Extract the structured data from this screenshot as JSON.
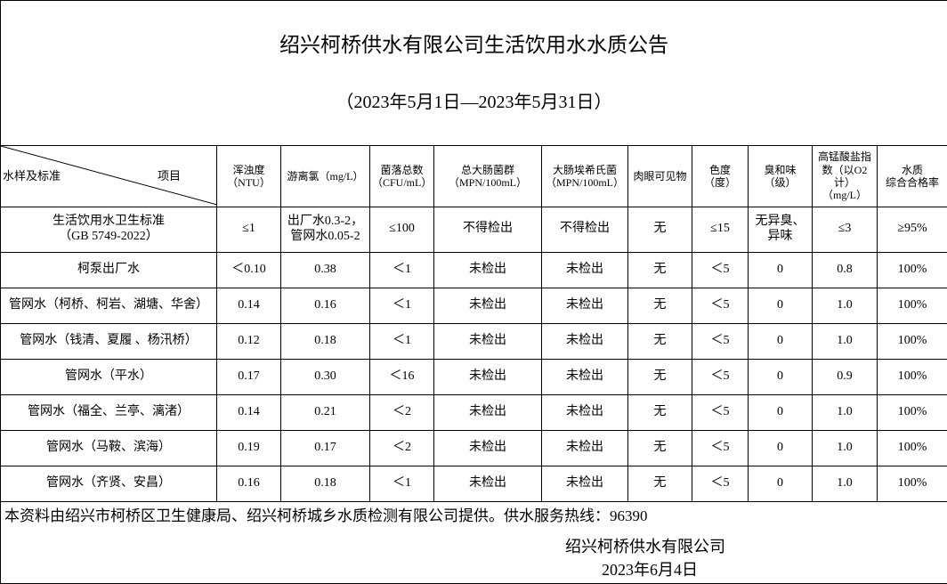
{
  "title": "绍兴柯桥供水有限公司生活饮用水水质公告",
  "subtitle": "（2023年5月1日—2023年5月31日）",
  "table": {
    "corner": {
      "row_label": "水样及标准",
      "col_label": "项目"
    },
    "headers": [
      "浑浊度\n（NTU）",
      "游离氯（mg/L）",
      "菌落总数\n（CFU/mL）",
      "总大肠菌群\n（MPN/100mL）",
      "大肠埃希氏菌\n（MPN/100mL）",
      "肉眼可见物",
      "色度\n（度）",
      "臭和味\n（级）",
      "高锰酸盐指\n数（以O2计）\n（mg/L）",
      "水质\n综合合格率"
    ],
    "rows": [
      [
        "生活饮用水卫生标准\n（GB 5749-2022）",
        "≤1",
        "出厂水0.3-2，\n管网水0.05-2",
        "≤100",
        "不得检出",
        "不得检出",
        "无",
        "≤15",
        "无异臭、\n异味",
        "≤3",
        "≥95%"
      ],
      [
        "柯泵出厂水",
        "＜0.10",
        "0.38",
        "＜1",
        "未检出",
        "未检出",
        "无",
        "＜5",
        "0",
        "0.8",
        "100%"
      ],
      [
        "管网水（柯桥、柯岩、湖塘、华舍）",
        "0.14",
        "0.16",
        "＜1",
        "未检出",
        "未检出",
        "无",
        "＜5",
        "0",
        "1.0",
        "100%"
      ],
      [
        "管网水（钱清、夏履 、杨汛桥）",
        "0.12",
        "0.18",
        "＜1",
        "未检出",
        "未检出",
        "无",
        "＜5",
        "0",
        "1.0",
        "100%"
      ],
      [
        "管网水（平水）",
        "0.17",
        "0.30",
        "＜16",
        "未检出",
        "未检出",
        "无",
        "＜5",
        "0",
        "0.9",
        "100%"
      ],
      [
        "管网水（福全、兰亭、漓渚）",
        "0.14",
        "0.21",
        "＜2",
        "未检出",
        "未检出",
        "无",
        "＜5",
        "0",
        "1.0",
        "100%"
      ],
      [
        "管网水（马鞍、滨海）",
        "0.19",
        "0.17",
        "＜2",
        "未检出",
        "未检出",
        "无",
        "＜5",
        "0",
        "1.0",
        "100%"
      ],
      [
        "管网水（齐贤、安昌）",
        "0.16",
        "0.18",
        "＜1",
        "未检出",
        "未检出",
        "无",
        "＜5",
        "0",
        "1.0",
        "100%"
      ]
    ]
  },
  "footer": {
    "note": "本资料由绍兴市柯桥区卫生健康局、绍兴柯桥城乡水质检测有限公司提供。供水服务热线：96390",
    "company": "绍兴柯桥供水有限公司",
    "date": "2023年6月4日"
  }
}
